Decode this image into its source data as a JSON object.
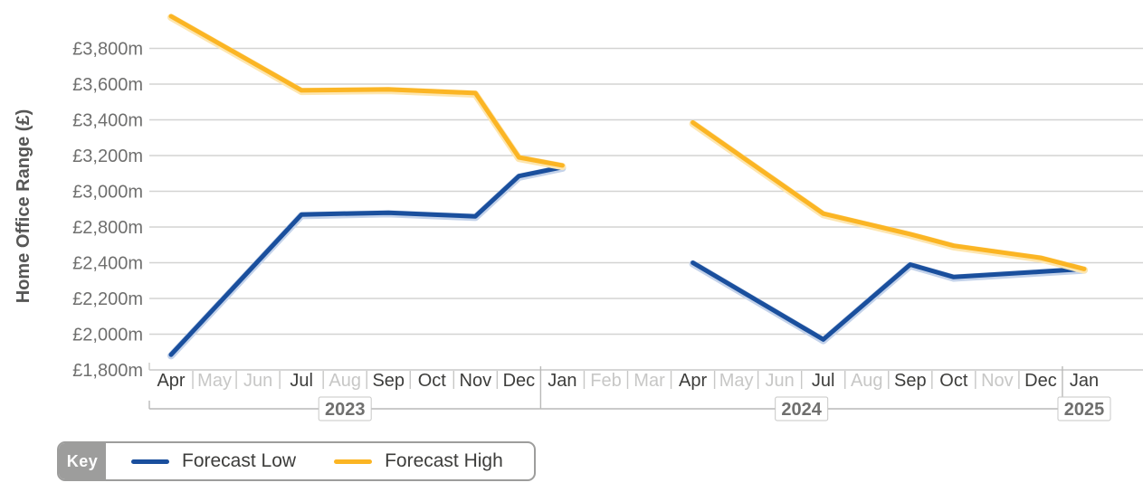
{
  "chart_data": {
    "type": "line",
    "title": "",
    "ylabel": "Home Office Range (£)",
    "grid": true,
    "y_axis": {
      "tick_labels": [
        "£3,800m",
        "£3,600m",
        "£3,400m",
        "£3,200m",
        "£3,000m",
        "£2,800m",
        "£2,400m",
        "£2,200m",
        "£2,000m",
        "£1,800m"
      ],
      "tick_values": [
        3800,
        3600,
        3400,
        3200,
        3000,
        2800,
        2400,
        2200,
        2000,
        1800
      ],
      "ylim": [
        1800,
        4020
      ]
    },
    "x_axis": {
      "months": [
        {
          "label": "Apr",
          "year": "2023",
          "active": true
        },
        {
          "label": "May",
          "year": "2023",
          "active": false
        },
        {
          "label": "Jun",
          "year": "2023",
          "active": false
        },
        {
          "label": "Jul",
          "year": "2023",
          "active": true
        },
        {
          "label": "Aug",
          "year": "2023",
          "active": false
        },
        {
          "label": "Sep",
          "year": "2023",
          "active": true
        },
        {
          "label": "Oct",
          "year": "2023",
          "active": true
        },
        {
          "label": "Nov",
          "year": "2023",
          "active": true
        },
        {
          "label": "Dec",
          "year": "2023",
          "active": true
        },
        {
          "label": "Jan",
          "year": "2024",
          "active": true
        },
        {
          "label": "Feb",
          "year": "2024",
          "active": false
        },
        {
          "label": "Mar",
          "year": "2024",
          "active": false
        },
        {
          "label": "Apr",
          "year": "2024",
          "active": true
        },
        {
          "label": "May",
          "year": "2024",
          "active": false
        },
        {
          "label": "Jun",
          "year": "2024",
          "active": false
        },
        {
          "label": "Jul",
          "year": "2024",
          "active": true
        },
        {
          "label": "Aug",
          "year": "2024",
          "active": false
        },
        {
          "label": "Sep",
          "year": "2024",
          "active": true
        },
        {
          "label": "Oct",
          "year": "2024",
          "active": true
        },
        {
          "label": "Nov",
          "year": "2024",
          "active": false
        },
        {
          "label": "Dec",
          "year": "2024",
          "active": true
        },
        {
          "label": "Jan",
          "year": "2025",
          "active": true
        }
      ]
    },
    "series": [
      {
        "name": "Forecast Low",
        "color": "#1a4f9d",
        "halo": "#c3d2ea",
        "segments": [
          [
            {
              "month": "Apr 2023",
              "value": 1885
            },
            {
              "month": "Jul 2023",
              "value": 2870
            },
            {
              "month": "Sep 2023",
              "value": 2880
            },
            {
              "month": "Oct 2023",
              "value": 2870
            },
            {
              "month": "Nov 2023",
              "value": 2860
            },
            {
              "month": "Dec 2023",
              "value": 3085
            },
            {
              "month": "Jan 2024",
              "value": 3135
            }
          ],
          [
            {
              "month": "Apr 2024",
              "value": 2400
            },
            {
              "month": "Jul 2024",
              "value": 1970
            },
            {
              "month": "Sep 2024",
              "value": 2390
            },
            {
              "month": "Oct 2024",
              "value": 2320
            },
            {
              "month": "Dec 2024",
              "value": 2350
            },
            {
              "month": "Jan 2025",
              "value": 2365
            }
          ]
        ]
      },
      {
        "name": "Forecast High",
        "color": "#fbb524",
        "halo": "#fde6b0",
        "segments": [
          [
            {
              "month": "Apr 2023",
              "value": 3980
            },
            {
              "month": "Jul 2023",
              "value": 3565
            },
            {
              "month": "Sep 2023",
              "value": 3570
            },
            {
              "month": "Oct 2023",
              "value": 3560
            },
            {
              "month": "Nov 2023",
              "value": 3550
            },
            {
              "month": "Dec 2023",
              "value": 3190
            },
            {
              "month": "Jan 2024",
              "value": 3145
            }
          ],
          [
            {
              "month": "Apr 2024",
              "value": 3385
            },
            {
              "month": "Jul 2024",
              "value": 2875
            },
            {
              "month": "Sep 2024",
              "value": 2720
            },
            {
              "month": "Oct 2024",
              "value": 2590
            },
            {
              "month": "Dec 2024",
              "value": 2455
            },
            {
              "month": "Jan 2025",
              "value": 2365
            }
          ]
        ]
      }
    ]
  },
  "legend": {
    "key_label": "Key",
    "items": [
      {
        "label": "Forecast Low",
        "color": "#1a4f9d"
      },
      {
        "label": "Forecast High",
        "color": "#fbb524"
      }
    ]
  },
  "colors": {
    "gridline": "#d3d3d2",
    "axis_line": "#c9c9c8",
    "month_active": "#3d3d3b",
    "month_inactive": "#c7c7c6",
    "tick_text": "#6f6f6e",
    "axis_title": "#575756",
    "year_text": "#6f6f6e",
    "bracket": "#b9b9b8",
    "year_box_border": "#c7c7c6"
  }
}
